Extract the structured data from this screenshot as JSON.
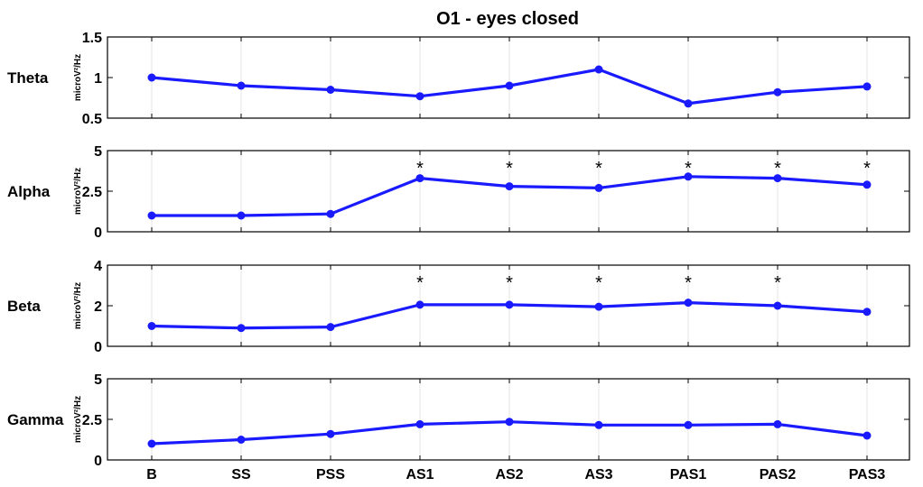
{
  "chart_data": {
    "type": "line",
    "title": "O1 - eyes closed",
    "categories": [
      "B",
      "SS",
      "PSS",
      "AS1",
      "AS2",
      "AS3",
      "PAS1",
      "PAS2",
      "PAS3"
    ],
    "marker_symbol": "*",
    "colors": {
      "line": "#1a1aff",
      "markers": "#000000"
    },
    "panels": [
      {
        "name": "Theta",
        "ylabel": "microV²/Hz",
        "ylim": [
          0.5,
          1.5
        ],
        "yticks": [
          0.5,
          1,
          1.5
        ],
        "ytick_labels": [
          "0.5",
          "1",
          "1.5"
        ],
        "values": [
          1.0,
          0.9,
          0.85,
          0.77,
          0.9,
          1.1,
          0.68,
          0.82,
          0.89
        ],
        "significant": []
      },
      {
        "name": "Alpha",
        "ylabel": "microV²/Hz",
        "ylim": [
          0,
          5
        ],
        "yticks": [
          0,
          2.5,
          5
        ],
        "ytick_labels": [
          "0",
          "2.5",
          "5"
        ],
        "values": [
          1.0,
          1.0,
          1.1,
          3.3,
          2.8,
          2.7,
          3.4,
          3.3,
          2.9
        ],
        "significant": [
          "AS1",
          "AS2",
          "AS3",
          "PAS1",
          "PAS2",
          "PAS3"
        ]
      },
      {
        "name": "Beta",
        "ylabel": "microV²/Hz",
        "ylim": [
          0,
          4
        ],
        "yticks": [
          0,
          2,
          4
        ],
        "ytick_labels": [
          "0",
          "2",
          "4"
        ],
        "values": [
          1.0,
          0.9,
          0.95,
          2.05,
          2.05,
          1.95,
          2.15,
          2.0,
          1.7
        ],
        "significant": [
          "AS1",
          "AS2",
          "AS3",
          "PAS1",
          "PAS2"
        ]
      },
      {
        "name": "Gamma",
        "ylabel": "microV²/Hz",
        "ylim": [
          0,
          5
        ],
        "yticks": [
          0,
          2.5,
          5
        ],
        "ytick_labels": [
          "0",
          "2.5",
          "5"
        ],
        "values": [
          1.0,
          1.25,
          1.6,
          2.2,
          2.35,
          2.15,
          2.15,
          2.2,
          1.5
        ],
        "significant": []
      }
    ]
  }
}
